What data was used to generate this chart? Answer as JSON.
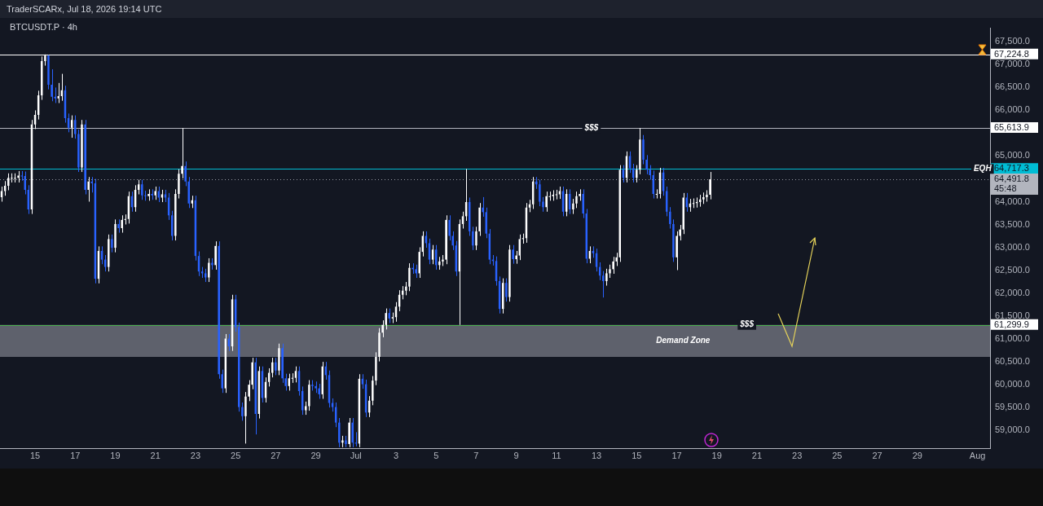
{
  "chart_data": {
    "type": "candlestick",
    "title": "BTCUSDT.P · 4h",
    "subtitle": "TraderSCARx, Jul 18, 2026 19:14 UTC",
    "x": [
      "2026-06-13T08:00",
      "2026-06-13T12:00",
      "2026-06-13T16:00",
      "2026-06-13T20:00",
      "2026-06-14T00:00",
      "2026-06-14T04:00",
      "2026-06-14T08:00",
      "2026-06-14T12:00",
      "2026-06-14T16:00",
      "2026-06-14T20:00",
      "2026-06-15T00:00",
      "2026-06-15T04:00",
      "2026-06-15T08:00",
      "2026-06-15T12:00",
      "2026-06-15T16:00",
      "2026-06-15T20:00",
      "2026-06-16T00:00",
      "2026-06-16T04:00",
      "2026-06-16T08:00",
      "2026-06-16T12:00",
      "2026-06-16T16:00",
      "2026-06-16T20:00",
      "2026-06-17T00:00",
      "2026-06-17T04:00",
      "2026-06-17T08:00",
      "2026-06-17T12:00",
      "2026-06-17T16:00",
      "2026-06-17T20:00",
      "2026-06-18T00:00",
      "2026-06-18T04:00",
      "2026-06-18T08:00",
      "2026-06-18T12:00",
      "2026-06-18T16:00",
      "2026-06-18T20:00",
      "2026-06-19T00:00",
      "2026-06-19T04:00",
      "2026-06-19T08:00",
      "2026-06-19T12:00",
      "2026-06-19T16:00",
      "2026-06-19T20:00",
      "2026-06-20T00:00",
      "2026-06-20T04:00",
      "2026-06-20T08:00",
      "2026-06-20T12:00",
      "2026-06-20T16:00",
      "2026-06-20T20:00",
      "2026-06-21T00:00",
      "2026-06-21T04:00",
      "2026-06-21T08:00",
      "2026-06-21T12:00",
      "2026-06-21T16:00",
      "2026-06-21T20:00",
      "2026-06-22T00:00",
      "2026-06-22T04:00",
      "2026-06-22T08:00",
      "2026-06-22T12:00",
      "2026-06-22T16:00",
      "2026-06-22T20:00",
      "2026-06-23T00:00",
      "2026-06-23T04:00",
      "2026-06-23T08:00",
      "2026-06-23T12:00",
      "2026-06-23T16:00",
      "2026-06-23T20:00",
      "2026-06-24T00:00",
      "2026-06-24T04:00",
      "2026-06-24T08:00",
      "2026-06-24T12:00",
      "2026-06-24T16:00",
      "2026-06-24T20:00",
      "2026-06-25T00:00",
      "2026-06-25T04:00",
      "2026-06-25T08:00",
      "2026-06-25T12:00",
      "2026-06-25T16:00",
      "2026-06-25T20:00",
      "2026-06-26T00:00",
      "2026-06-26T04:00",
      "2026-06-26T08:00",
      "2026-06-26T12:00",
      "2026-06-26T16:00",
      "2026-06-26T20:00",
      "2026-06-27T00:00",
      "2026-06-27T04:00",
      "2026-06-27T08:00",
      "2026-06-27T12:00",
      "2026-06-27T16:00",
      "2026-06-27T20:00",
      "2026-06-28T00:00",
      "2026-06-28T04:00",
      "2026-06-28T08:00",
      "2026-06-28T12:00",
      "2026-06-28T16:00",
      "2026-06-28T20:00",
      "2026-06-29T00:00",
      "2026-06-29T04:00",
      "2026-06-29T08:00",
      "2026-06-29T12:00",
      "2026-06-29T16:00",
      "2026-06-29T20:00",
      "2026-06-30T00:00",
      "2026-06-30T04:00",
      "2026-06-30T08:00",
      "2026-06-30T12:00",
      "2026-06-30T16:00",
      "2026-06-30T20:00",
      "2026-07-01T00:00",
      "2026-07-01T04:00",
      "2026-07-01T08:00",
      "2026-07-01T12:00",
      "2026-07-01T16:00",
      "2026-07-01T20:00",
      "2026-07-02T00:00",
      "2026-07-02T04:00",
      "2026-07-02T08:00",
      "2026-07-02T12:00",
      "2026-07-02T16:00",
      "2026-07-02T20:00",
      "2026-07-03T00:00",
      "2026-07-03T04:00",
      "2026-07-03T08:00",
      "2026-07-03T12:00",
      "2026-07-03T16:00",
      "2026-07-03T20:00",
      "2026-07-04T00:00",
      "2026-07-04T04:00",
      "2026-07-04T08:00",
      "2026-07-04T12:00",
      "2026-07-04T16:00",
      "2026-07-04T20:00",
      "2026-07-05T00:00",
      "2026-07-05T04:00",
      "2026-07-05T08:00",
      "2026-07-05T12:00",
      "2026-07-05T16:00",
      "2026-07-05T20:00",
      "2026-07-06T00:00",
      "2026-07-06T04:00",
      "2026-07-06T08:00",
      "2026-07-06T12:00",
      "2026-07-06T16:00",
      "2026-07-06T20:00",
      "2026-07-07T00:00",
      "2026-07-07T04:00",
      "2026-07-07T08:00",
      "2026-07-07T12:00",
      "2026-07-07T16:00",
      "2026-07-07T20:00",
      "2026-07-08T00:00",
      "2026-07-08T04:00",
      "2026-07-08T08:00",
      "2026-07-08T12:00",
      "2026-07-08T16:00",
      "2026-07-08T20:00",
      "2026-07-09T00:00",
      "2026-07-09T04:00",
      "2026-07-09T08:00",
      "2026-07-09T12:00",
      "2026-07-09T16:00",
      "2026-07-09T20:00",
      "2026-07-10T00:00",
      "2026-07-10T04:00",
      "2026-07-10T08:00",
      "2026-07-10T12:00",
      "2026-07-10T16:00",
      "2026-07-10T20:00",
      "2026-07-11T00:00",
      "2026-07-11T04:00",
      "2026-07-11T08:00",
      "2026-07-11T12:00",
      "2026-07-11T16:00",
      "2026-07-11T20:00",
      "2026-07-12T00:00",
      "2026-07-12T04:00",
      "2026-07-12T08:00",
      "2026-07-12T12:00",
      "2026-07-12T16:00",
      "2026-07-12T20:00",
      "2026-07-13T00:00",
      "2026-07-13T04:00",
      "2026-07-13T08:00",
      "2026-07-13T12:00",
      "2026-07-13T16:00",
      "2026-07-13T20:00",
      "2026-07-14T00:00",
      "2026-07-14T04:00",
      "2026-07-14T08:00",
      "2026-07-14T12:00",
      "2026-07-14T16:00",
      "2026-07-14T20:00",
      "2026-07-15T00:00",
      "2026-07-15T04:00",
      "2026-07-15T08:00",
      "2026-07-15T12:00",
      "2026-07-15T16:00",
      "2026-07-15T20:00",
      "2026-07-16T00:00",
      "2026-07-16T04:00",
      "2026-07-16T08:00",
      "2026-07-16T12:00",
      "2026-07-16T16:00",
      "2026-07-16T20:00",
      "2026-07-17T00:00",
      "2026-07-17T04:00",
      "2026-07-17T08:00",
      "2026-07-17T12:00",
      "2026-07-17T16:00",
      "2026-07-17T20:00",
      "2026-07-18T00:00",
      "2026-07-18T04:00",
      "2026-07-18T08:00",
      "2026-07-18T12:00",
      "2026-07-18T16:00"
    ],
    "ohlc": [
      [
        64100,
        64330,
        64000,
        64230
      ],
      [
        64230,
        64450,
        64130,
        64350
      ],
      [
        64350,
        64620,
        64250,
        64520
      ],
      [
        64520,
        64620,
        64420,
        64520
      ],
      [
        64520,
        64620,
        64420,
        64520
      ],
      [
        64520,
        64670,
        64420,
        64570
      ],
      [
        64570,
        64670,
        64460,
        64560
      ],
      [
        64560,
        64660,
        64160,
        64260
      ],
      [
        64260,
        64360,
        63730,
        63830
      ],
      [
        63830,
        65790,
        63730,
        65690
      ],
      [
        65690,
        66000,
        65590,
        65900
      ],
      [
        65900,
        66430,
        65800,
        66330
      ],
      [
        66330,
        67180,
        66230,
        67080
      ],
      [
        67080,
        67224.8,
        66980,
        67200
      ],
      [
        67200,
        67210,
        66460,
        66560
      ],
      [
        66560,
        66900,
        66200,
        66300
      ],
      [
        66300,
        66500,
        66160,
        66260
      ],
      [
        66260,
        66600,
        66160,
        66310
      ],
      [
        66310,
        66800,
        66210,
        66440
      ],
      [
        66440,
        66540,
        65730,
        65830
      ],
      [
        65830,
        65930,
        65520,
        65620
      ],
      [
        65620,
        65890,
        65400,
        65790
      ],
      [
        65790,
        65890,
        65380,
        65480
      ],
      [
        65480,
        65580,
        64650,
        64750
      ],
      [
        64750,
        65790,
        64650,
        65690
      ],
      [
        65690,
        65790,
        64160,
        64260
      ],
      [
        64260,
        64540,
        64000,
        64440
      ],
      [
        64440,
        64540,
        64200,
        64400
      ],
      [
        64400,
        64500,
        62210,
        62310
      ],
      [
        62310,
        63020,
        62210,
        62920
      ],
      [
        62920,
        63020,
        62630,
        62730
      ],
      [
        62730,
        62830,
        62470,
        62570
      ],
      [
        62570,
        63280,
        62470,
        63180
      ],
      [
        63180,
        63280,
        62890,
        62990
      ],
      [
        62990,
        63610,
        62890,
        63510
      ],
      [
        63510,
        63610,
        63320,
        63420
      ],
      [
        63420,
        63700,
        63320,
        63600
      ],
      [
        63600,
        63720,
        63500,
        63620
      ],
      [
        63620,
        64220,
        63520,
        64120
      ],
      [
        64120,
        64220,
        63780,
        63880
      ],
      [
        63880,
        64360,
        63780,
        64260
      ],
      [
        64260,
        64480,
        64160,
        64380
      ],
      [
        64380,
        64480,
        64040,
        64140
      ],
      [
        64140,
        64240,
        64020,
        64120
      ],
      [
        64120,
        64270,
        64020,
        64170
      ],
      [
        64170,
        64270,
        64040,
        64140
      ],
      [
        64140,
        64330,
        64040,
        64230
      ],
      [
        64230,
        64330,
        63990,
        64090
      ],
      [
        64090,
        64260,
        63990,
        64160
      ],
      [
        64160,
        64260,
        63990,
        64090
      ],
      [
        64090,
        64190,
        63600,
        63700
      ],
      [
        63700,
        63800,
        63150,
        63250
      ],
      [
        63250,
        64270,
        63150,
        64170
      ],
      [
        64170,
        64710,
        64070,
        64610
      ],
      [
        64610,
        65613.9,
        64510,
        64780
      ],
      [
        64780,
        64880,
        64340,
        64440
      ],
      [
        64440,
        64540,
        63860,
        63960
      ],
      [
        63960,
        64130,
        63860,
        64030
      ],
      [
        64030,
        64130,
        62710,
        62810
      ],
      [
        62810,
        62910,
        62370,
        62470
      ],
      [
        62470,
        62570,
        62330,
        62430
      ],
      [
        62430,
        62530,
        62240,
        62340
      ],
      [
        62340,
        62760,
        62240,
        62660
      ],
      [
        62660,
        62760,
        62510,
        62610
      ],
      [
        62610,
        63130,
        62510,
        63030
      ],
      [
        63030,
        63130,
        60120,
        60220
      ],
      [
        60220,
        60320,
        59810,
        59910
      ],
      [
        59910,
        61100,
        59810,
        61000
      ],
      [
        61000,
        61100,
        60730,
        60830
      ],
      [
        60830,
        61960,
        60730,
        61860
      ],
      [
        61860,
        61960,
        61150,
        61250
      ],
      [
        61250,
        61350,
        59400,
        59500
      ],
      [
        59500,
        59600,
        59200,
        59300
      ],
      [
        59300,
        59830,
        58700,
        59730
      ],
      [
        59730,
        60090,
        59630,
        59990
      ],
      [
        59990,
        60580,
        59890,
        60480
      ],
      [
        60480,
        60580,
        58900,
        59350
      ],
      [
        59350,
        60390,
        59250,
        60290
      ],
      [
        60290,
        60390,
        59600,
        59700
      ],
      [
        59700,
        60150,
        59600,
        60050
      ],
      [
        60050,
        60350,
        59950,
        60250
      ],
      [
        60250,
        60580,
        60150,
        60480
      ],
      [
        60480,
        60580,
        60200,
        60300
      ],
      [
        60300,
        60890,
        60200,
        60790
      ],
      [
        60790,
        60890,
        60030,
        60130
      ],
      [
        60130,
        60230,
        59860,
        59960
      ],
      [
        59960,
        60230,
        59860,
        60130
      ],
      [
        60130,
        60240,
        60030,
        60140
      ],
      [
        60140,
        60390,
        60040,
        60290
      ],
      [
        60290,
        60390,
        59750,
        59850
      ],
      [
        59850,
        59950,
        59330,
        59430
      ],
      [
        59430,
        59620,
        59330,
        59520
      ],
      [
        59520,
        60090,
        59420,
        59990
      ],
      [
        59990,
        60090,
        59860,
        59960
      ],
      [
        59960,
        60060,
        59810,
        59910
      ],
      [
        59910,
        60010,
        59680,
        59780
      ],
      [
        59780,
        60490,
        59680,
        60390
      ],
      [
        60390,
        60490,
        60100,
        60200
      ],
      [
        60200,
        60300,
        59490,
        59590
      ],
      [
        59590,
        59690,
        59400,
        59500
      ],
      [
        59500,
        59600,
        59060,
        59160
      ],
      [
        59160,
        59260,
        58620,
        58720
      ],
      [
        58720,
        58870,
        58620,
        58770
      ],
      [
        58770,
        58870,
        58620,
        58690
      ],
      [
        58690,
        59260,
        58620,
        59160
      ],
      [
        59160,
        59260,
        58620,
        58720
      ],
      [
        58720,
        58950,
        58640,
        58700
      ],
      [
        58700,
        60220,
        58620,
        60120
      ],
      [
        60120,
        60220,
        59900,
        60000
      ],
      [
        60000,
        60100,
        59280,
        59380
      ],
      [
        59380,
        59740,
        59280,
        59640
      ],
      [
        59640,
        60180,
        59540,
        60080
      ],
      [
        60080,
        60700,
        59980,
        60600
      ],
      [
        60600,
        61230,
        60500,
        61130
      ],
      [
        61130,
        61400,
        61030,
        61300
      ],
      [
        61300,
        61660,
        61200,
        61560
      ],
      [
        61560,
        61660,
        61340,
        61440
      ],
      [
        61440,
        61570,
        61340,
        61470
      ],
      [
        61470,
        61800,
        61370,
        61700
      ],
      [
        61700,
        62060,
        61600,
        61960
      ],
      [
        61960,
        62150,
        61860,
        62050
      ],
      [
        62050,
        62240,
        61950,
        62140
      ],
      [
        62140,
        62650,
        62040,
        62550
      ],
      [
        62550,
        62650,
        62420,
        62520
      ],
      [
        62520,
        62620,
        62330,
        62430
      ],
      [
        62430,
        63000,
        62330,
        62900
      ],
      [
        62900,
        63350,
        62800,
        63250
      ],
      [
        63250,
        63350,
        62990,
        63090
      ],
      [
        63090,
        63190,
        62630,
        62730
      ],
      [
        62730,
        63050,
        62630,
        62950
      ],
      [
        62950,
        63050,
        62510,
        62610
      ],
      [
        62610,
        62790,
        62510,
        62690
      ],
      [
        62690,
        62830,
        62590,
        62730
      ],
      [
        62730,
        63700,
        62630,
        63600
      ],
      [
        63600,
        63700,
        63150,
        63250
      ],
      [
        63250,
        63350,
        62940,
        63040
      ],
      [
        63040,
        63140,
        62370,
        62470
      ],
      [
        62470,
        63610,
        61299.9,
        63510
      ],
      [
        63510,
        63780,
        63410,
        63680
      ],
      [
        63680,
        64717.3,
        63580,
        63990
      ],
      [
        63990,
        64090,
        63250,
        63350
      ],
      [
        63350,
        63450,
        62940,
        63040
      ],
      [
        63040,
        63450,
        62940,
        63350
      ],
      [
        63350,
        63970,
        63250,
        63870
      ],
      [
        63870,
        64100,
        63670,
        63770
      ],
      [
        63770,
        63870,
        63200,
        63300
      ],
      [
        63300,
        63400,
        62630,
        62730
      ],
      [
        62730,
        62830,
        62600,
        62700
      ],
      [
        62700,
        62800,
        62160,
        62260
      ],
      [
        62260,
        62360,
        61550,
        61650
      ],
      [
        61650,
        62320,
        61550,
        62220
      ],
      [
        62220,
        62320,
        61810,
        61910
      ],
      [
        61910,
        63050,
        61810,
        62950
      ],
      [
        62950,
        63050,
        62640,
        62740
      ],
      [
        62740,
        62920,
        62640,
        62820
      ],
      [
        62820,
        63280,
        62720,
        63180
      ],
      [
        63180,
        63300,
        63080,
        63200
      ],
      [
        63200,
        63970,
        63100,
        63870
      ],
      [
        63870,
        64040,
        63770,
        63940
      ],
      [
        63940,
        64540,
        63840,
        64440
      ],
      [
        64440,
        64540,
        64280,
        64380
      ],
      [
        64380,
        64480,
        63900,
        64000
      ],
      [
        64000,
        64100,
        63780,
        63880
      ],
      [
        63880,
        64220,
        63780,
        64120
      ],
      [
        64120,
        64220,
        64020,
        64120
      ],
      [
        64120,
        64250,
        64020,
        64150
      ],
      [
        64150,
        64260,
        64050,
        64160
      ],
      [
        64160,
        64330,
        64060,
        64230
      ],
      [
        64230,
        64330,
        63680,
        63780
      ],
      [
        63780,
        64270,
        63680,
        64170
      ],
      [
        64170,
        64270,
        63730,
        63830
      ],
      [
        63830,
        64060,
        63730,
        63960
      ],
      [
        63960,
        64220,
        63860,
        64120
      ],
      [
        64120,
        64270,
        64020,
        64170
      ],
      [
        64170,
        64270,
        63640,
        63740
      ],
      [
        63740,
        63840,
        62650,
        62750
      ],
      [
        62750,
        63020,
        62650,
        62920
      ],
      [
        62920,
        63020,
        62770,
        62870
      ],
      [
        62870,
        62970,
        62470,
        62570
      ],
      [
        62570,
        62670,
        62280,
        62380
      ],
      [
        62380,
        62480,
        61900,
        62260
      ],
      [
        62260,
        62530,
        62160,
        62430
      ],
      [
        62430,
        62620,
        62330,
        62520
      ],
      [
        62520,
        62790,
        62420,
        62690
      ],
      [
        62690,
        62880,
        62590,
        62780
      ],
      [
        62780,
        64800,
        62680,
        64700
      ],
      [
        64700,
        64800,
        64420,
        64520
      ],
      [
        64520,
        65100,
        64420,
        65000
      ],
      [
        65000,
        65100,
        64630,
        64730
      ],
      [
        64730,
        64830,
        64420,
        64520
      ],
      [
        64520,
        64800,
        64420,
        64700
      ],
      [
        64700,
        65613.9,
        64600,
        65360
      ],
      [
        65360,
        65460,
        64820,
        64920
      ],
      [
        64920,
        65020,
        64600,
        64700
      ],
      [
        64700,
        64800,
        64480,
        64580
      ],
      [
        64580,
        64680,
        64070,
        64170
      ],
      [
        64170,
        64270,
        64070,
        64170
      ],
      [
        64170,
        64740,
        64070,
        64640
      ],
      [
        64640,
        64740,
        64130,
        64230
      ],
      [
        64230,
        64330,
        63680,
        63780
      ],
      [
        63780,
        63880,
        63410,
        63510
      ],
      [
        63510,
        63610,
        62680,
        62780
      ],
      [
        62780,
        63350,
        62500,
        63250
      ],
      [
        63250,
        63490,
        63150,
        63390
      ],
      [
        63390,
        64190,
        63290,
        64090
      ],
      [
        64090,
        64190,
        63780,
        63880
      ],
      [
        63880,
        64060,
        63780,
        63960
      ],
      [
        63960,
        64070,
        63860,
        63970
      ],
      [
        63970,
        64090,
        63870,
        63990
      ],
      [
        63990,
        64150,
        63890,
        64050
      ],
      [
        64050,
        64200,
        63950,
        64100
      ],
      [
        64100,
        64250,
        64000,
        64150
      ],
      [
        64150,
        64650,
        64050,
        64491.8
      ]
    ],
    "colors": [
      "#ffffff",
      "#ffffff",
      "#ffffff",
      "#ffffff",
      "#ffffff",
      "#ffffff",
      "#2962ff",
      "#2962ff",
      "#2962ff",
      "#ffffff",
      "#ffffff",
      "#ffffff",
      "#ffffff",
      "#ffffff",
      "#2962ff",
      "#2962ff",
      "#2962ff",
      "#ffffff",
      "#ffffff",
      "#2962ff",
      "#2962ff",
      "#ffffff",
      "#2962ff",
      "#2962ff",
      "#ffffff",
      "#2962ff",
      "#ffffff",
      "#2962ff",
      "#2962ff",
      "#ffffff",
      "#2962ff",
      "#2962ff",
      "#ffffff",
      "#2962ff",
      "#ffffff",
      "#2962ff",
      "#ffffff",
      "#ffffff",
      "#ffffff",
      "#2962ff",
      "#ffffff",
      "#ffffff",
      "#2962ff",
      "#2962ff",
      "#ffffff",
      "#2962ff",
      "#ffffff",
      "#2962ff",
      "#ffffff",
      "#2962ff",
      "#2962ff",
      "#2962ff",
      "#ffffff",
      "#ffffff",
      "#ffffff",
      "#2962ff",
      "#2962ff",
      "#ffffff",
      "#2962ff",
      "#2962ff",
      "#2962ff",
      "#2962ff",
      "#ffffff",
      "#2962ff",
      "#ffffff",
      "#2962ff",
      "#2962ff",
      "#ffffff",
      "#2962ff",
      "#ffffff",
      "#2962ff",
      "#2962ff",
      "#2962ff",
      "#ffffff",
      "#ffffff",
      "#ffffff",
      "#2962ff",
      "#ffffff",
      "#2962ff",
      "#ffffff",
      "#ffffff",
      "#ffffff",
      "#2962ff",
      "#ffffff",
      "#2962ff",
      "#2962ff",
      "#ffffff",
      "#ffffff",
      "#ffffff",
      "#2962ff",
      "#2962ff",
      "#ffffff",
      "#ffffff",
      "#2962ff",
      "#2962ff",
      "#2962ff",
      "#ffffff",
      "#2962ff",
      "#2962ff",
      "#2962ff",
      "#2962ff",
      "#2962ff",
      "#ffffff",
      "#2962ff",
      "#ffffff",
      "#2962ff",
      "#2962ff",
      "#ffffff",
      "#2962ff",
      "#2962ff",
      "#ffffff",
      "#ffffff",
      "#ffffff",
      "#ffffff",
      "#ffffff",
      "#ffffff",
      "#2962ff",
      "#ffffff",
      "#ffffff",
      "#ffffff",
      "#ffffff",
      "#ffffff",
      "#ffffff",
      "#2962ff",
      "#2962ff",
      "#ffffff",
      "#ffffff",
      "#2962ff",
      "#2962ff",
      "#ffffff",
      "#2962ff",
      "#ffffff",
      "#ffffff",
      "#ffffff",
      "#2962ff",
      "#2962ff",
      "#2962ff",
      "#ffffff",
      "#ffffff",
      "#ffffff",
      "#2962ff",
      "#2962ff",
      "#ffffff",
      "#ffffff",
      "#2962ff",
      "#2962ff",
      "#2962ff",
      "#2962ff",
      "#2962ff",
      "#2962ff",
      "#ffffff",
      "#2962ff",
      "#ffffff",
      "#2962ff",
      "#ffffff",
      "#ffffff",
      "#ffffff",
      "#ffffff",
      "#ffffff",
      "#ffffff",
      "#2962ff",
      "#2962ff",
      "#2962ff",
      "#ffffff",
      "#ffffff",
      "#ffffff",
      "#ffffff",
      "#ffffff",
      "#2962ff",
      "#ffffff",
      "#2962ff",
      "#ffffff",
      "#ffffff",
      "#ffffff",
      "#2962ff",
      "#2962ff",
      "#ffffff",
      "#2962ff",
      "#2962ff",
      "#2962ff",
      "#2962ff",
      "#ffffff",
      "#ffffff",
      "#ffffff",
      "#ffffff",
      "#ffffff",
      "#2962ff",
      "#ffffff",
      "#2962ff",
      "#2962ff",
      "#ffffff",
      "#ffffff",
      "#2962ff",
      "#2962ff",
      "#2962ff",
      "#2962ff",
      "#ffffff",
      "#ffffff",
      "#2962ff",
      "#2962ff",
      "#2962ff",
      "#2962ff",
      "#ffffff",
      "#ffffff",
      "#ffffff",
      "#2962ff",
      "#ffffff",
      "#ffffff",
      "#ffffff",
      "#ffffff",
      "#ffffff",
      "#ffffff",
      "#ffffff"
    ],
    "xlim": [
      "2026-06-13T06:00",
      "2026-08-01T15:00"
    ],
    "xticks": [
      {
        "value": "2026-06-15",
        "label": "15"
      },
      {
        "value": "2026-06-17",
        "label": "17"
      },
      {
        "value": "2026-06-19",
        "label": "19"
      },
      {
        "value": "2026-06-21",
        "label": "21"
      },
      {
        "value": "2026-06-23",
        "label": "23"
      },
      {
        "value": "2026-06-25",
        "label": "25"
      },
      {
        "value": "2026-06-27",
        "label": "27"
      },
      {
        "value": "2026-06-29",
        "label": "29"
      },
      {
        "value": "2026-07-01",
        "label": "Jul"
      },
      {
        "value": "2026-07-03",
        "label": "3"
      },
      {
        "value": "2026-07-05",
        "label": "5"
      },
      {
        "value": "2026-07-07",
        "label": "7"
      },
      {
        "value": "2026-07-09",
        "label": "9"
      },
      {
        "value": "2026-07-11",
        "label": "11"
      },
      {
        "value": "2026-07-13",
        "label": "13"
      },
      {
        "value": "2026-07-15",
        "label": "15"
      },
      {
        "value": "2026-07-17",
        "label": "17"
      },
      {
        "value": "2026-07-19",
        "label": "19"
      },
      {
        "value": "2026-07-21",
        "label": "21"
      },
      {
        "value": "2026-07-23",
        "label": "23"
      },
      {
        "value": "2026-07-25",
        "label": "25"
      },
      {
        "value": "2026-07-27",
        "label": "27"
      },
      {
        "value": "2026-07-29",
        "label": "29"
      },
      {
        "value": "2026-08-01",
        "label": "Aug"
      }
    ],
    "ylim": [
      58600,
      67800
    ],
    "yticks": [
      {
        "value": 59000,
        "label": "59,000.0"
      },
      {
        "value": 59500,
        "label": "59,500.0"
      },
      {
        "value": 60000,
        "label": "60,000.0"
      },
      {
        "value": 60500,
        "label": "60,500.0"
      },
      {
        "value": 61000,
        "label": "61,000.0"
      },
      {
        "value": 61500,
        "label": "61,500.0"
      },
      {
        "value": 62000,
        "label": "62,000.0"
      },
      {
        "value": 62500,
        "label": "62,500.0"
      },
      {
        "value": 63000,
        "label": "63,000.0"
      },
      {
        "value": 63500,
        "label": "63,500.0"
      },
      {
        "value": 64000,
        "label": "64,000.0"
      },
      {
        "value": 65000,
        "label": "65,000.0"
      },
      {
        "value": 66000,
        "label": "66,000.0"
      },
      {
        "value": 66500,
        "label": "66,500.0"
      },
      {
        "value": 67000,
        "label": "67,000.0"
      },
      {
        "value": 67500,
        "label": "67,500.0"
      }
    ],
    "ref_lines": [
      {
        "axis": "y",
        "value": 67224.8,
        "label": "67,224.8",
        "color": "#ffffff"
      },
      {
        "axis": "y",
        "value": 65613.9,
        "label": "65,613.9",
        "color": "#b2b5be"
      },
      {
        "axis": "y",
        "value": 64717.3,
        "label": "64,717.3",
        "color": "#00bcd4"
      },
      {
        "axis": "y",
        "value": 64491.8,
        "label": "64,491.8",
        "color": "#9598a1",
        "line_style": "dotted"
      },
      {
        "axis": "y",
        "value": 61299.9,
        "label": "61,299.9",
        "color": "#4caf50"
      }
    ],
    "bands": [
      {
        "axis": "y",
        "from": 60600,
        "to": 61299.9,
        "label": "Demand Zone",
        "color": "#787b86"
      }
    ],
    "annotations": [
      {
        "text": "$$$",
        "x": "2026-07-12T18:00",
        "y": 65613.9
      },
      {
        "text": "$$$",
        "x": "2026-07-20T12:00",
        "y": 61299.9
      },
      {
        "text": "EQH",
        "x": "2026-08-01T06:00",
        "y": 64717.3
      },
      "45:48"
    ]
  }
}
